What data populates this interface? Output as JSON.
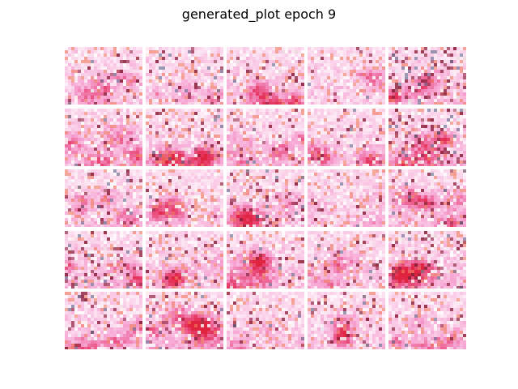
{
  "title": "generated_plot epoch 9",
  "grid": {
    "rows": 5,
    "cols": 5,
    "palette": {
      "base_pink": "#f9c6e4",
      "magenta": "#f060b0",
      "red": "#e0233f",
      "coral": "#f08060",
      "dark_red": "#8a1f3a",
      "slate": "#5a6a8a",
      "white": "#ffffff"
    },
    "tiles": [
      {
        "red": 0.45,
        "dark": 0.2,
        "seed": 11
      },
      {
        "red": 0.35,
        "dark": 0.3,
        "seed": 23
      },
      {
        "red": 0.5,
        "dark": 0.25,
        "seed": 37
      },
      {
        "red": 0.3,
        "dark": 0.1,
        "seed": 41
      },
      {
        "red": 0.6,
        "dark": 0.55,
        "seed": 53
      },
      {
        "red": 0.55,
        "dark": 0.15,
        "seed": 61
      },
      {
        "red": 0.6,
        "dark": 0.3,
        "seed": 73
      },
      {
        "red": 0.55,
        "dark": 0.15,
        "seed": 89
      },
      {
        "red": 0.45,
        "dark": 0.15,
        "seed": 97
      },
      {
        "red": 0.65,
        "dark": 0.55,
        "seed": 101
      },
      {
        "red": 0.5,
        "dark": 0.3,
        "seed": 113
      },
      {
        "red": 0.4,
        "dark": 0.2,
        "seed": 127
      },
      {
        "red": 0.4,
        "dark": 0.4,
        "seed": 131
      },
      {
        "red": 0.3,
        "dark": 0.1,
        "seed": 139
      },
      {
        "red": 0.55,
        "dark": 0.2,
        "seed": 149
      },
      {
        "red": 0.7,
        "dark": 0.45,
        "seed": 151
      },
      {
        "red": 0.45,
        "dark": 0.2,
        "seed": 163
      },
      {
        "red": 0.55,
        "dark": 0.2,
        "seed": 173
      },
      {
        "red": 0.45,
        "dark": 0.2,
        "seed": 181
      },
      {
        "red": 0.65,
        "dark": 0.4,
        "seed": 191
      },
      {
        "red": 0.45,
        "dark": 0.2,
        "seed": 199
      },
      {
        "red": 0.75,
        "dark": 0.35,
        "seed": 211
      },
      {
        "red": 0.4,
        "dark": 0.2,
        "seed": 223
      },
      {
        "red": 0.45,
        "dark": 0.25,
        "seed": 227
      },
      {
        "red": 0.5,
        "dark": 0.2,
        "seed": 233
      }
    ]
  }
}
